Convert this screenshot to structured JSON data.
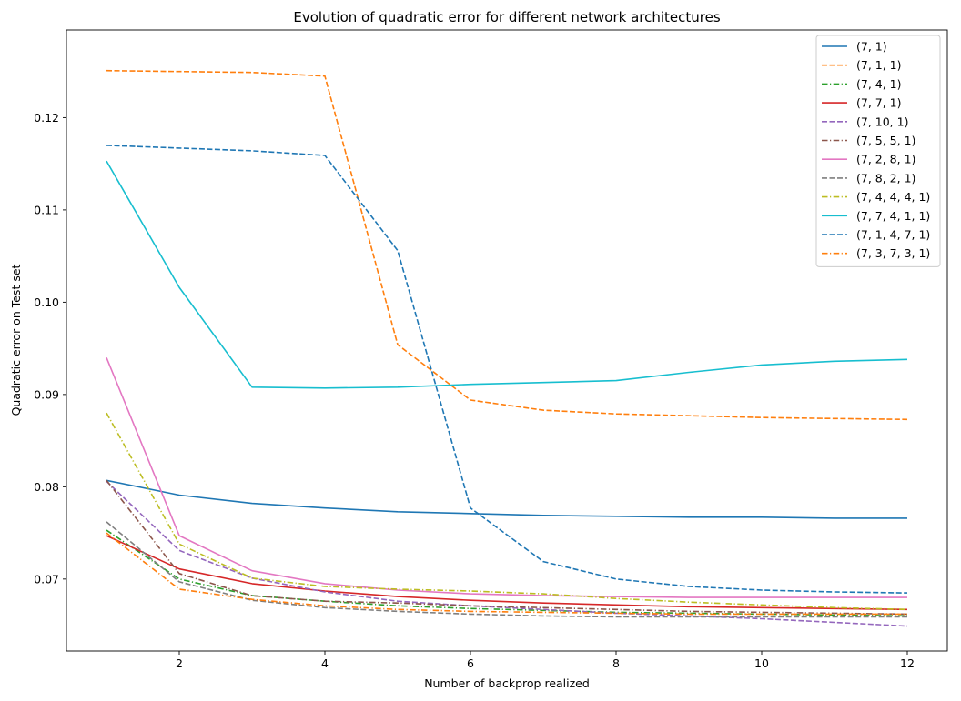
{
  "chart_data": {
    "type": "line",
    "title": "Evolution of quadratic error for different network architectures",
    "xlabel": "Number of backprop realized",
    "ylabel": "Quadratic error on Test set",
    "x": [
      1,
      2,
      3,
      4,
      5,
      6,
      7,
      8,
      9,
      10,
      11,
      12
    ],
    "xlim": [
      0.45,
      12.55
    ],
    "ylim": [
      0.0622,
      0.1295
    ],
    "xticks": [
      2,
      4,
      6,
      8,
      10,
      12
    ],
    "yticks": [
      0.07,
      0.08,
      0.09,
      0.1,
      0.11,
      0.12
    ],
    "ytick_labels": [
      "0.07",
      "0.08",
      "0.09",
      "0.10",
      "0.11",
      "0.12"
    ],
    "grid": false,
    "legend_position": "top-right",
    "series": [
      {
        "name": "(7, 1)",
        "color": "#1f77b4",
        "dash": "solid",
        "values": [
          0.0807,
          0.0791,
          0.0782,
          0.0777,
          0.0773,
          0.0771,
          0.0769,
          0.0768,
          0.0767,
          0.0767,
          0.0766,
          0.0766
        ]
      },
      {
        "name": "(7, 1, 1)",
        "color": "#ff7f0e",
        "dash": "dashed",
        "values": [
          0.1251,
          0.125,
          0.1249,
          0.1245,
          0.0954,
          0.0894,
          0.0883,
          0.0879,
          0.0877,
          0.0875,
          0.0874,
          0.0873
        ]
      },
      {
        "name": "(7, 4, 1)",
        "color": "#2ca02c",
        "dash": "dashdot",
        "values": [
          0.0753,
          0.07,
          0.0682,
          0.0676,
          0.0671,
          0.0668,
          0.0666,
          0.0664,
          0.0663,
          0.0662,
          0.0661,
          0.066
        ]
      },
      {
        "name": "(7, 7, 1)",
        "color": "#d62728",
        "dash": "solid",
        "values": [
          0.0747,
          0.0711,
          0.0695,
          0.0687,
          0.0681,
          0.0677,
          0.0674,
          0.0672,
          0.067,
          0.0669,
          0.0668,
          0.0667
        ]
      },
      {
        "name": "(7, 10, 1)",
        "color": "#9467bd",
        "dash": "dashed",
        "values": [
          0.0806,
          0.0731,
          0.0701,
          0.0686,
          0.0676,
          0.0671,
          0.0667,
          0.0663,
          0.066,
          0.0657,
          0.0653,
          0.0649
        ]
      },
      {
        "name": "(7, 5, 5, 1)",
        "color": "#8c564b",
        "dash": "dashdot",
        "values": [
          0.0807,
          0.0706,
          0.0682,
          0.0676,
          0.0674,
          0.0671,
          0.0669,
          0.0667,
          0.0665,
          0.0664,
          0.0663,
          0.0662
        ]
      },
      {
        "name": "(7, 2, 8, 1)",
        "color": "#e377c2",
        "dash": "solid",
        "values": [
          0.094,
          0.0747,
          0.0709,
          0.0695,
          0.0688,
          0.0684,
          0.0682,
          0.0681,
          0.068,
          0.068,
          0.068,
          0.068
        ]
      },
      {
        "name": "(7, 8, 2, 1)",
        "color": "#7f7f7f",
        "dash": "dashed",
        "values": [
          0.0762,
          0.0697,
          0.0677,
          0.0669,
          0.0665,
          0.0662,
          0.066,
          0.0659,
          0.0659,
          0.0659,
          0.0659,
          0.0659
        ]
      },
      {
        "name": "(7, 4, 4, 4, 1)",
        "color": "#bcbd22",
        "dash": "dashdot",
        "values": [
          0.088,
          0.0738,
          0.0701,
          0.0692,
          0.0689,
          0.0687,
          0.0684,
          0.0679,
          0.0675,
          0.0672,
          0.0669,
          0.0667
        ]
      },
      {
        "name": "(7, 7, 4, 1, 1)",
        "color": "#17becf",
        "dash": "solid",
        "values": [
          0.1153,
          0.1016,
          0.0908,
          0.0907,
          0.0908,
          0.0911,
          0.0913,
          0.0915,
          0.0924,
          0.0932,
          0.0936,
          0.0938
        ]
      },
      {
        "name": "(7, 1, 4, 7, 1)",
        "color": "#1f77b4",
        "dash": "dashed",
        "values": [
          0.117,
          0.1167,
          0.1164,
          0.1159,
          0.1056,
          0.0777,
          0.0719,
          0.07,
          0.0692,
          0.0688,
          0.0686,
          0.0685
        ]
      },
      {
        "name": "(7, 3, 7, 3, 1)",
        "color": "#ff7f0e",
        "dash": "dashdot",
        "values": [
          0.075,
          0.0689,
          0.0678,
          0.0671,
          0.0667,
          0.0665,
          0.0664,
          0.0663,
          0.0662,
          0.0662,
          0.0662,
          0.0662
        ]
      }
    ]
  }
}
